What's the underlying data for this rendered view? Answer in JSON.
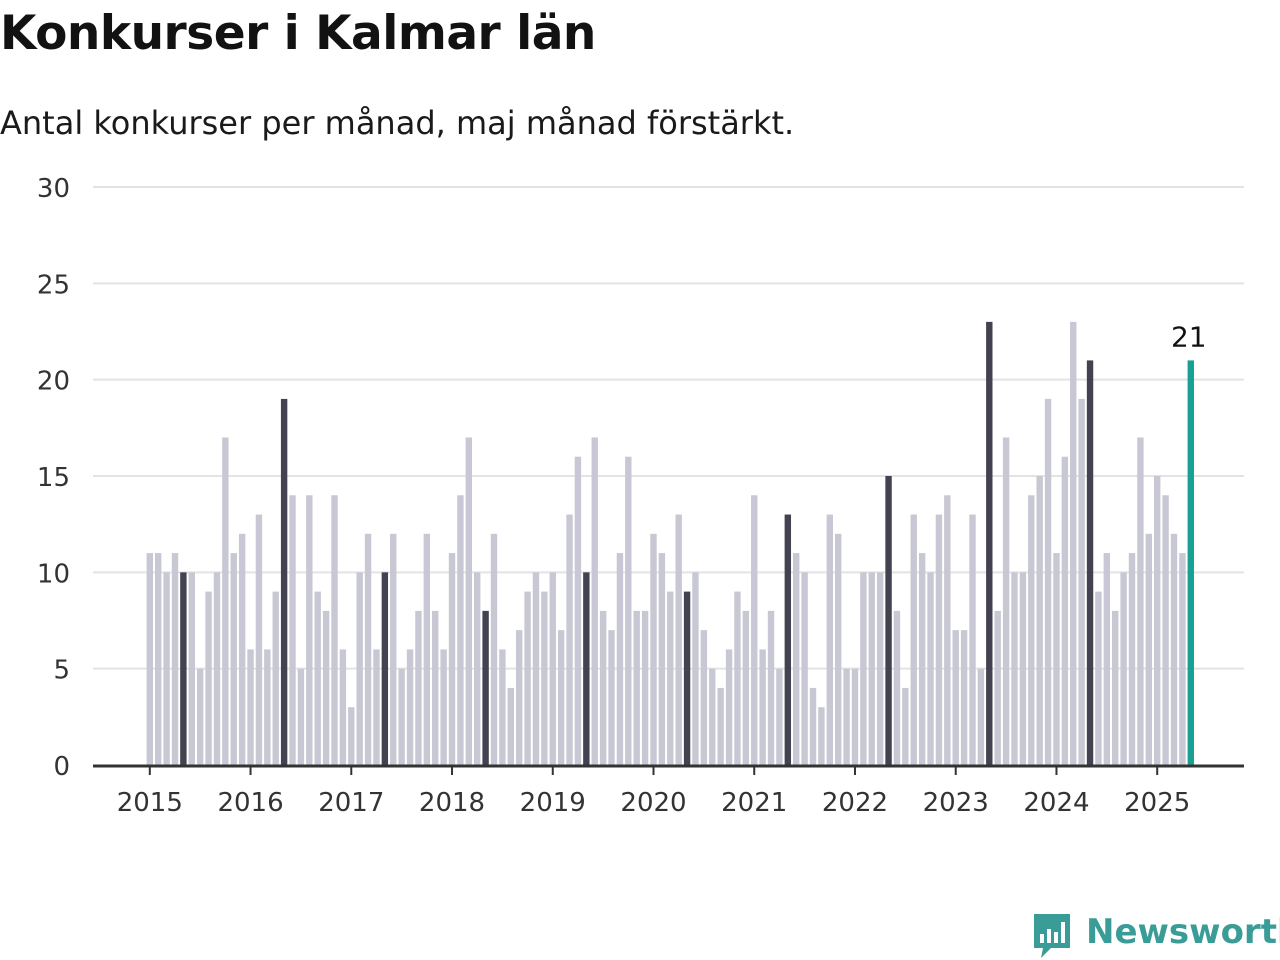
{
  "title": "Konkurser i Kalmar län",
  "subtitle": "Antal konkurser per månad, maj månad förstärkt.",
  "brand": {
    "name": "Newsworthy",
    "icon": "newsworthy-chart-icon"
  },
  "colors": {
    "bar": "#c8c8d4",
    "highlight": "#434250",
    "latest": "#18a092",
    "grid": "#e3e3e3",
    "axis": "#333333",
    "brand": "#3a9c96"
  },
  "chart_data": {
    "type": "bar",
    "title": "Konkurser i Kalmar län",
    "subtitle": "Antal konkurser per månad, maj månad förstärkt.",
    "xlabel": "",
    "ylabel": "",
    "ylim": [
      0,
      30
    ],
    "y_ticks": [
      0,
      5,
      10,
      15,
      20,
      25,
      30
    ],
    "x_ticks": [
      "2015",
      "2016",
      "2017",
      "2018",
      "2019",
      "2020",
      "2021",
      "2022",
      "2023",
      "2024",
      "2025"
    ],
    "grid": true,
    "start": "2015-01",
    "highlight_month": "maj",
    "annotation": {
      "label": "21",
      "month": "2025-05"
    },
    "values": [
      11,
      11,
      10,
      11,
      10,
      10,
      5,
      9,
      10,
      17,
      11,
      12,
      6,
      13,
      6,
      9,
      19,
      14,
      5,
      14,
      9,
      8,
      14,
      6,
      3,
      10,
      12,
      6,
      10,
      12,
      5,
      6,
      8,
      12,
      8,
      6,
      11,
      14,
      17,
      10,
      8,
      12,
      6,
      4,
      7,
      9,
      10,
      9,
      10,
      7,
      13,
      16,
      10,
      17,
      8,
      7,
      11,
      16,
      8,
      8,
      12,
      11,
      9,
      13,
      9,
      10,
      7,
      5,
      4,
      6,
      9,
      8,
      14,
      6,
      8,
      5,
      13,
      11,
      10,
      4,
      3,
      13,
      12,
      5,
      5,
      10,
      10,
      10,
      15,
      8,
      4,
      13,
      11,
      10,
      13,
      14,
      7,
      7,
      13,
      5,
      23,
      8,
      17,
      10,
      10,
      14,
      15,
      19,
      11,
      16,
      23,
      19,
      21,
      9,
      11,
      8,
      10,
      11,
      17,
      12,
      15,
      14,
      12,
      11,
      21
    ]
  }
}
